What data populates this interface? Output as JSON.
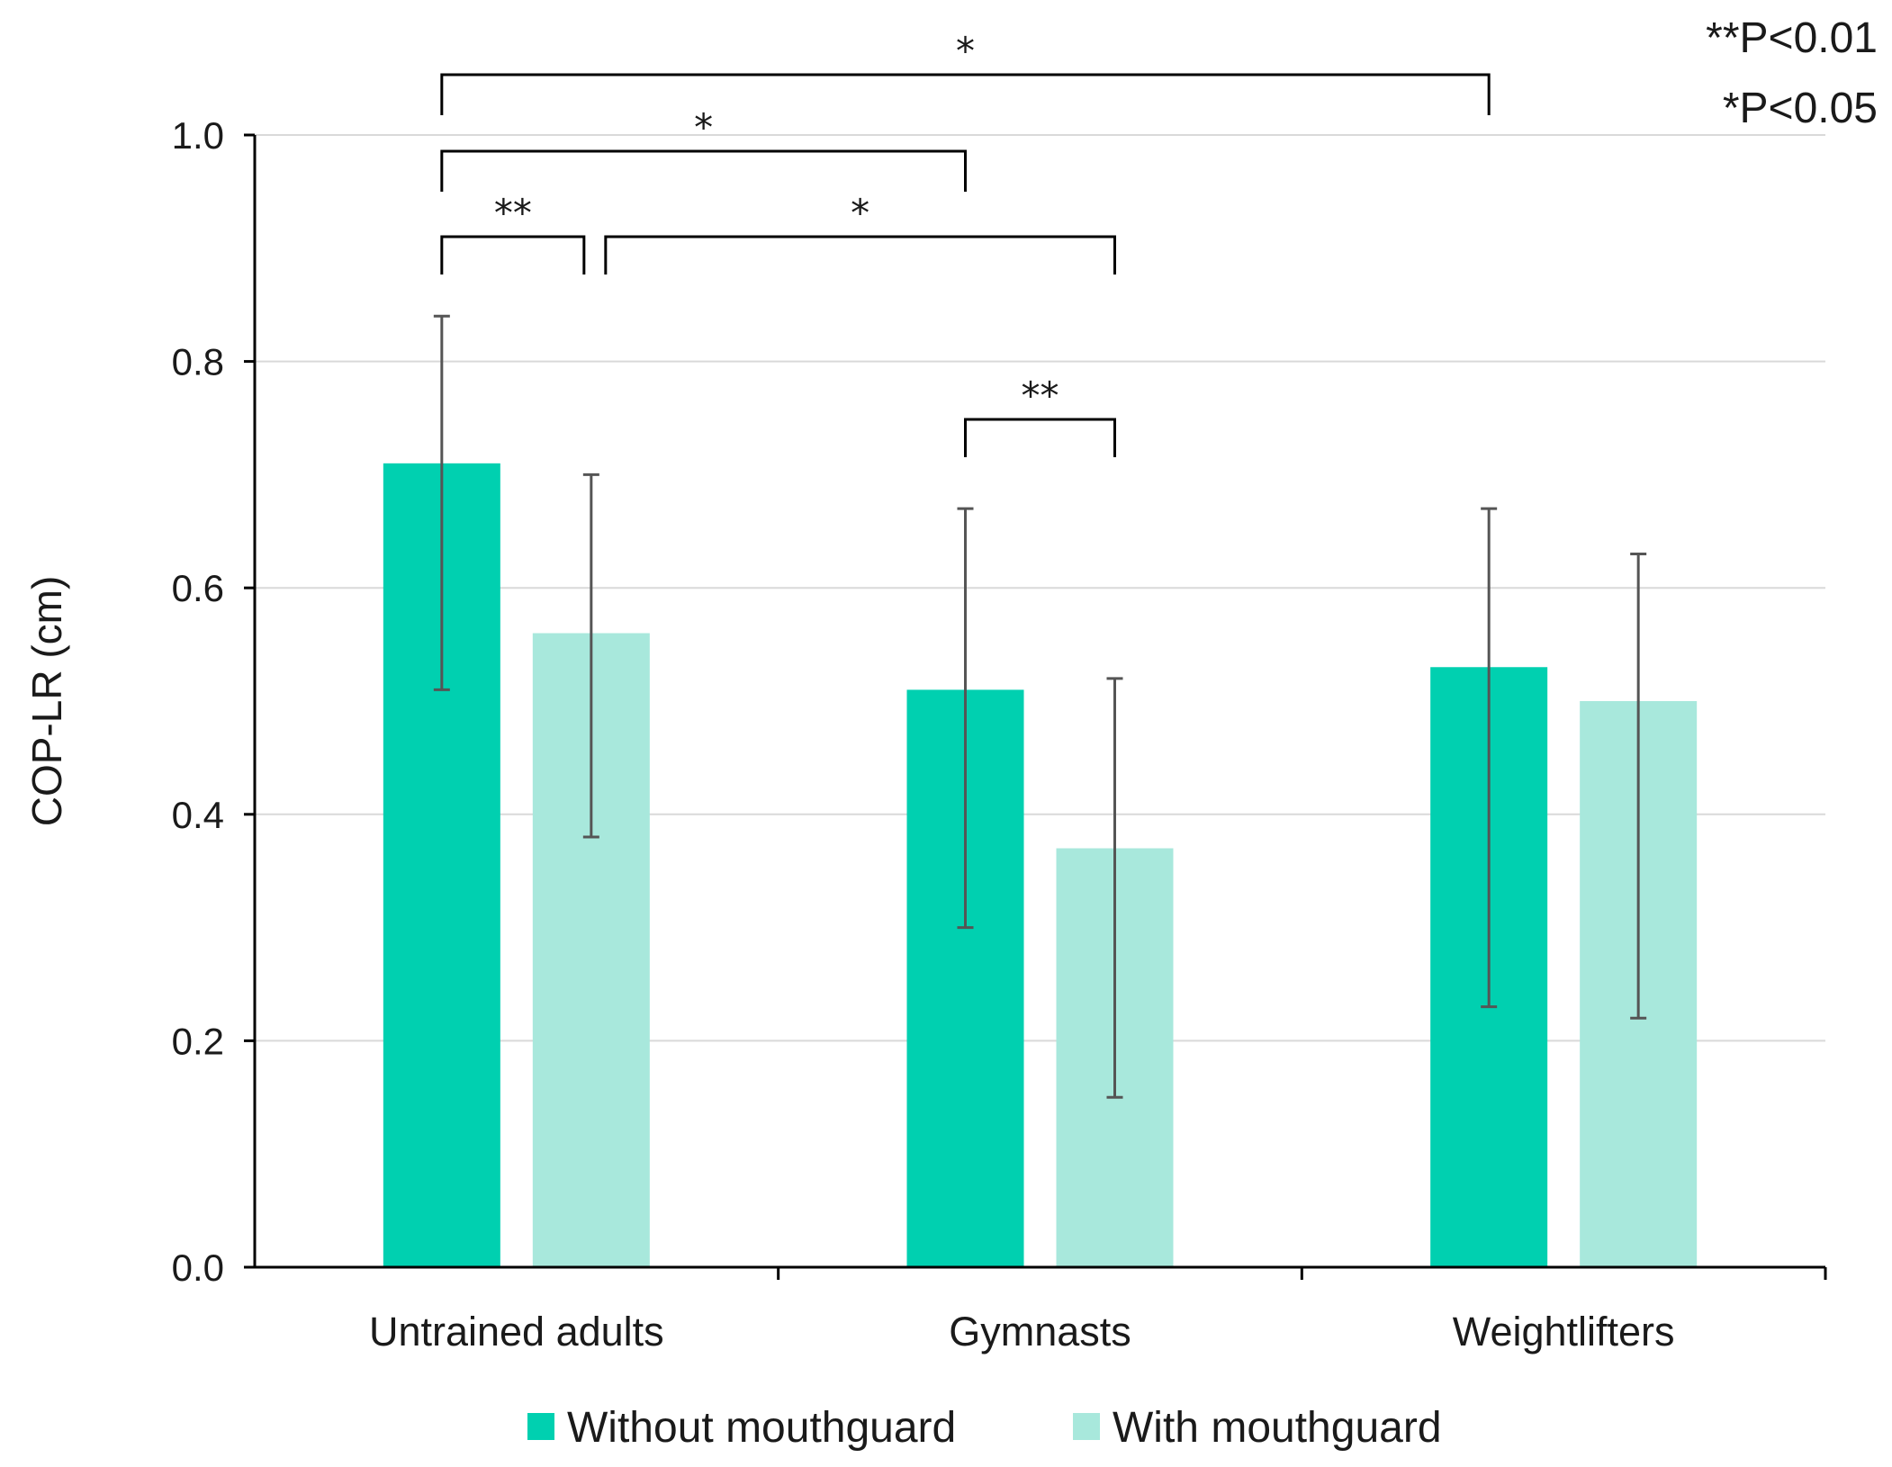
{
  "chart_data": {
    "type": "bar",
    "title": "",
    "xlabel": "",
    "ylabel": "COP-LR (cm)",
    "ylim": [
      0,
      1.0
    ],
    "yticks": [
      "0.0",
      "0.2",
      "0.4",
      "0.6",
      "0.8",
      "1.0"
    ],
    "grid": true,
    "categories": [
      "Untrained adults",
      "Gymnasts",
      "Weightlifters"
    ],
    "series": [
      {
        "name": "Without mouthguard",
        "color": "#00d0b0",
        "values": [
          0.71,
          0.51,
          0.53
        ],
        "error_low": [
          0.51,
          0.3,
          0.23
        ],
        "error_high": [
          0.84,
          0.67,
          0.67
        ]
      },
      {
        "name": "With mouthguard",
        "color": "#a8e8dc",
        "values": [
          0.56,
          0.37,
          0.5
        ],
        "error_low": [
          0.38,
          0.15,
          0.22
        ],
        "error_high": [
          0.7,
          0.52,
          0.63
        ]
      }
    ],
    "significance": [
      {
        "from": [
          0,
          0
        ],
        "to": [
          2,
          0
        ],
        "label": "*"
      },
      {
        "from": [
          0,
          0
        ],
        "to": [
          1,
          0
        ],
        "label": "*"
      },
      {
        "from": [
          0,
          0
        ],
        "to": [
          0,
          1
        ],
        "label": "**"
      },
      {
        "from": [
          0,
          1
        ],
        "to": [
          1,
          1
        ],
        "label": "*"
      },
      {
        "from": [
          1,
          0
        ],
        "to": [
          1,
          1
        ],
        "label": "**"
      }
    ],
    "annotations": [
      "**P<0.01",
      "*P<0.05"
    ],
    "legend_position": "bottom"
  }
}
